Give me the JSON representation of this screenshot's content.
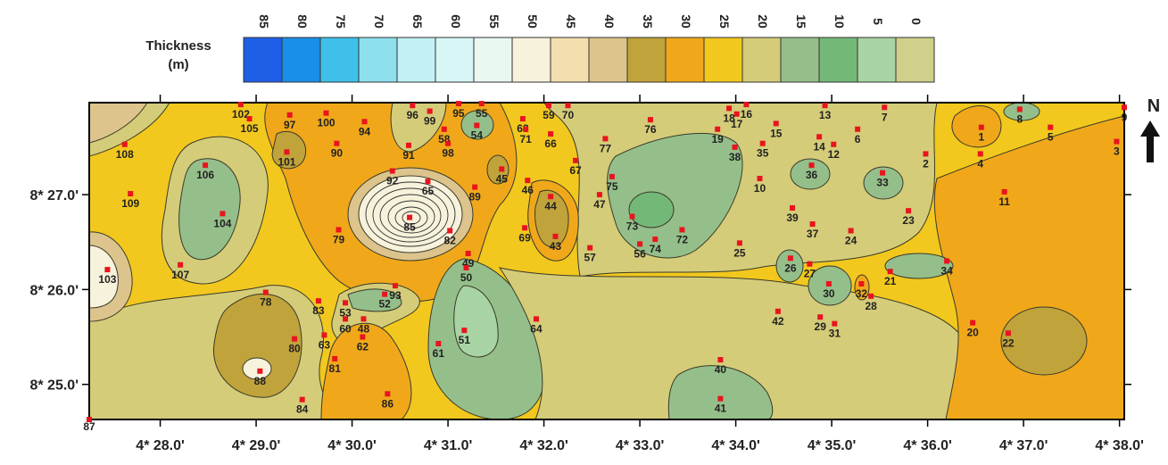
{
  "legend": {
    "title": "Thickness",
    "unit": "(m)",
    "levels": [
      85,
      80,
      75,
      70,
      65,
      60,
      55,
      50,
      45,
      40,
      35,
      30,
      25,
      20,
      15,
      10,
      5,
      0
    ],
    "colors": [
      "#1f5fe8",
      "#1a8fe8",
      "#3ec0ea",
      "#8ee0ee",
      "#c2f0f4",
      "#d8f6f6",
      "#eaf8f2",
      "#f7f2dc",
      "#f3dfae",
      "#dcc48c",
      "#c0a33a",
      "#f0a81a",
      "#f2c81e",
      "#d4cc78",
      "#95bf8a",
      "#74b878",
      "#a8d4a4",
      "#cfd08a"
    ]
  },
  "map": {
    "xlim": [
      27.26,
      38.05
    ],
    "ylim": [
      24.63,
      27.97
    ],
    "xticks": [
      {
        "value": 28,
        "label": "4* 28.0'"
      },
      {
        "value": 29,
        "label": "4* 29.0'"
      },
      {
        "value": 30,
        "label": "4* 30.0'"
      },
      {
        "value": 31,
        "label": "4* 31.0'"
      },
      {
        "value": 32,
        "label": "4* 32.0'"
      },
      {
        "value": 33,
        "label": "4* 33.0'"
      },
      {
        "value": 34,
        "label": "4* 34.0'"
      },
      {
        "value": 35,
        "label": "4* 35.0'"
      },
      {
        "value": 36,
        "label": "4* 36.0'"
      },
      {
        "value": 37,
        "label": "4* 37.0'"
      },
      {
        "value": 38,
        "label": "4* 38.0'"
      }
    ],
    "yticks": [
      {
        "value": 27,
        "label": "8* 27.0'"
      },
      {
        "value": 26,
        "label": "8* 26.0'"
      },
      {
        "value": 25,
        "label": "8* 25.0'"
      }
    ],
    "north_label": "N",
    "stations": [
      {
        "id": 1,
        "lon": 36.56,
        "lat": 27.71
      },
      {
        "id": 2,
        "lon": 35.98,
        "lat": 27.43
      },
      {
        "id": 3,
        "lon": 37.97,
        "lat": 27.56
      },
      {
        "id": 4,
        "lon": 36.55,
        "lat": 27.43
      },
      {
        "id": 5,
        "lon": 37.28,
        "lat": 27.71
      },
      {
        "id": 6,
        "lon": 35.27,
        "lat": 27.69
      },
      {
        "id": 7,
        "lon": 35.55,
        "lat": 27.92
      },
      {
        "id": 8,
        "lon": 36.96,
        "lat": 27.9
      },
      {
        "id": 9,
        "lon": 38.05,
        "lat": 27.92
      },
      {
        "id": 10,
        "lon": 34.25,
        "lat": 27.17
      },
      {
        "id": 11,
        "lon": 36.8,
        "lat": 27.03
      },
      {
        "id": 12,
        "lon": 35.02,
        "lat": 27.53
      },
      {
        "id": 13,
        "lon": 34.93,
        "lat": 27.94
      },
      {
        "id": 14,
        "lon": 34.87,
        "lat": 27.61
      },
      {
        "id": 15,
        "lon": 34.42,
        "lat": 27.75
      },
      {
        "id": 16,
        "lon": 34.11,
        "lat": 27.95
      },
      {
        "id": 17,
        "lon": 34.01,
        "lat": 27.85
      },
      {
        "id": 18,
        "lon": 33.93,
        "lat": 27.91
      },
      {
        "id": 19,
        "lon": 33.81,
        "lat": 27.69
      },
      {
        "id": 20,
        "lon": 36.47,
        "lat": 25.65
      },
      {
        "id": 21,
        "lon": 35.61,
        "lat": 26.19
      },
      {
        "id": 22,
        "lon": 36.84,
        "lat": 25.54
      },
      {
        "id": 23,
        "lon": 35.8,
        "lat": 26.83
      },
      {
        "id": 24,
        "lon": 35.2,
        "lat": 26.62
      },
      {
        "id": 25,
        "lon": 34.04,
        "lat": 26.49
      },
      {
        "id": 26,
        "lon": 34.57,
        "lat": 26.33
      },
      {
        "id": 27,
        "lon": 34.77,
        "lat": 26.27
      },
      {
        "id": 28,
        "lon": 35.41,
        "lat": 25.93
      },
      {
        "id": 29,
        "lon": 34.88,
        "lat": 25.71
      },
      {
        "id": 30,
        "lon": 34.97,
        "lat": 26.06
      },
      {
        "id": 31,
        "lon": 35.03,
        "lat": 25.64
      },
      {
        "id": 32,
        "lon": 35.31,
        "lat": 26.06
      },
      {
        "id": 33,
        "lon": 35.53,
        "lat": 27.23
      },
      {
        "id": 34,
        "lon": 36.2,
        "lat": 26.3
      },
      {
        "id": 35,
        "lon": 34.28,
        "lat": 27.54
      },
      {
        "id": 36,
        "lon": 34.79,
        "lat": 27.31
      },
      {
        "id": 37,
        "lon": 34.8,
        "lat": 26.69
      },
      {
        "id": 38,
        "lon": 33.99,
        "lat": 27.5
      },
      {
        "id": 39,
        "lon": 34.59,
        "lat": 26.86
      },
      {
        "id": 40,
        "lon": 33.84,
        "lat": 25.26
      },
      {
        "id": 41,
        "lon": 33.84,
        "lat": 24.85
      },
      {
        "id": 42,
        "lon": 34.44,
        "lat": 25.77
      },
      {
        "id": 43,
        "lon": 32.12,
        "lat": 26.56
      },
      {
        "id": 44,
        "lon": 32.07,
        "lat": 26.98
      },
      {
        "id": 45,
        "lon": 31.56,
        "lat": 27.27
      },
      {
        "id": 46,
        "lon": 31.83,
        "lat": 27.15
      },
      {
        "id": 47,
        "lon": 32.58,
        "lat": 27.0
      },
      {
        "id": 48,
        "lon": 30.12,
        "lat": 25.69
      },
      {
        "id": 49,
        "lon": 31.21,
        "lat": 26.38
      },
      {
        "id": 50,
        "lon": 31.19,
        "lat": 26.23
      },
      {
        "id": 51,
        "lon": 31.17,
        "lat": 25.57
      },
      {
        "id": 52,
        "lon": 30.34,
        "lat": 25.95
      },
      {
        "id": 53,
        "lon": 29.93,
        "lat": 25.86
      },
      {
        "id": 54,
        "lon": 31.3,
        "lat": 27.73
      },
      {
        "id": 55,
        "lon": 31.35,
        "lat": 27.96
      },
      {
        "id": 56,
        "lon": 33.0,
        "lat": 26.48
      },
      {
        "id": 57,
        "lon": 32.48,
        "lat": 26.44
      },
      {
        "id": 58,
        "lon": 30.96,
        "lat": 27.69
      },
      {
        "id": 59,
        "lon": 32.05,
        "lat": 27.94
      },
      {
        "id": 60,
        "lon": 29.93,
        "lat": 25.69
      },
      {
        "id": 61,
        "lon": 30.9,
        "lat": 25.43
      },
      {
        "id": 62,
        "lon": 30.11,
        "lat": 25.5
      },
      {
        "id": 63,
        "lon": 29.71,
        "lat": 25.52
      },
      {
        "id": 64,
        "lon": 31.92,
        "lat": 25.69
      },
      {
        "id": 65,
        "lon": 30.79,
        "lat": 27.14
      },
      {
        "id": 66,
        "lon": 32.07,
        "lat": 27.64
      },
      {
        "id": 67,
        "lon": 32.33,
        "lat": 27.36
      },
      {
        "id": 68,
        "lon": 31.78,
        "lat": 27.8
      },
      {
        "id": 69,
        "lon": 31.8,
        "lat": 26.65
      },
      {
        "id": 70,
        "lon": 32.25,
        "lat": 27.94
      },
      {
        "id": 71,
        "lon": 31.81,
        "lat": 27.69
      },
      {
        "id": 72,
        "lon": 33.44,
        "lat": 26.63
      },
      {
        "id": 73,
        "lon": 32.92,
        "lat": 26.77
      },
      {
        "id": 74,
        "lon": 33.16,
        "lat": 26.53
      },
      {
        "id": 75,
        "lon": 32.71,
        "lat": 27.19
      },
      {
        "id": 76,
        "lon": 33.11,
        "lat": 27.79
      },
      {
        "id": 77,
        "lon": 32.64,
        "lat": 27.59
      },
      {
        "id": 78,
        "lon": 29.1,
        "lat": 25.97
      },
      {
        "id": 79,
        "lon": 29.86,
        "lat": 26.63
      },
      {
        "id": 80,
        "lon": 29.4,
        "lat": 25.48
      },
      {
        "id": 81,
        "lon": 29.82,
        "lat": 25.27
      },
      {
        "id": 82,
        "lon": 31.02,
        "lat": 26.62
      },
      {
        "id": 83,
        "lon": 29.65,
        "lat": 25.88
      },
      {
        "id": 84,
        "lon": 29.48,
        "lat": 24.84
      },
      {
        "id": 85,
        "lon": 30.6,
        "lat": 26.76
      },
      {
        "id": 86,
        "lon": 30.37,
        "lat": 24.9
      },
      {
        "id": 87,
        "lon": 27.26,
        "lat": 24.63
      },
      {
        "id": 88,
        "lon": 29.04,
        "lat": 25.14
      },
      {
        "id": 89,
        "lon": 31.28,
        "lat": 27.08
      },
      {
        "id": 90,
        "lon": 29.84,
        "lat": 27.54
      },
      {
        "id": 91,
        "lon": 30.59,
        "lat": 27.52
      },
      {
        "id": 92,
        "lon": 30.42,
        "lat": 27.25
      },
      {
        "id": 93,
        "lon": 30.45,
        "lat": 26.04
      },
      {
        "id": 94,
        "lon": 30.13,
        "lat": 27.77
      },
      {
        "id": 95,
        "lon": 31.11,
        "lat": 27.96
      },
      {
        "id": 96,
        "lon": 30.63,
        "lat": 27.94
      },
      {
        "id": 97,
        "lon": 29.35,
        "lat": 27.84
      },
      {
        "id": 98,
        "lon": 31.0,
        "lat": 27.54
      },
      {
        "id": 99,
        "lon": 30.81,
        "lat": 27.88
      },
      {
        "id": 100,
        "lon": 29.73,
        "lat": 27.86
      },
      {
        "id": 101,
        "lon": 29.32,
        "lat": 27.45
      },
      {
        "id": 102,
        "lon": 28.84,
        "lat": 27.95
      },
      {
        "id": 103,
        "lon": 27.45,
        "lat": 26.21
      },
      {
        "id": 104,
        "lon": 28.65,
        "lat": 26.8
      },
      {
        "id": 105,
        "lon": 28.93,
        "lat": 27.8
      },
      {
        "id": 106,
        "lon": 28.47,
        "lat": 27.31
      },
      {
        "id": 107,
        "lon": 28.21,
        "lat": 26.26
      },
      {
        "id": 108,
        "lon": 27.63,
        "lat": 27.53
      },
      {
        "id": 109,
        "lon": 27.69,
        "lat": 27.01
      }
    ]
  }
}
